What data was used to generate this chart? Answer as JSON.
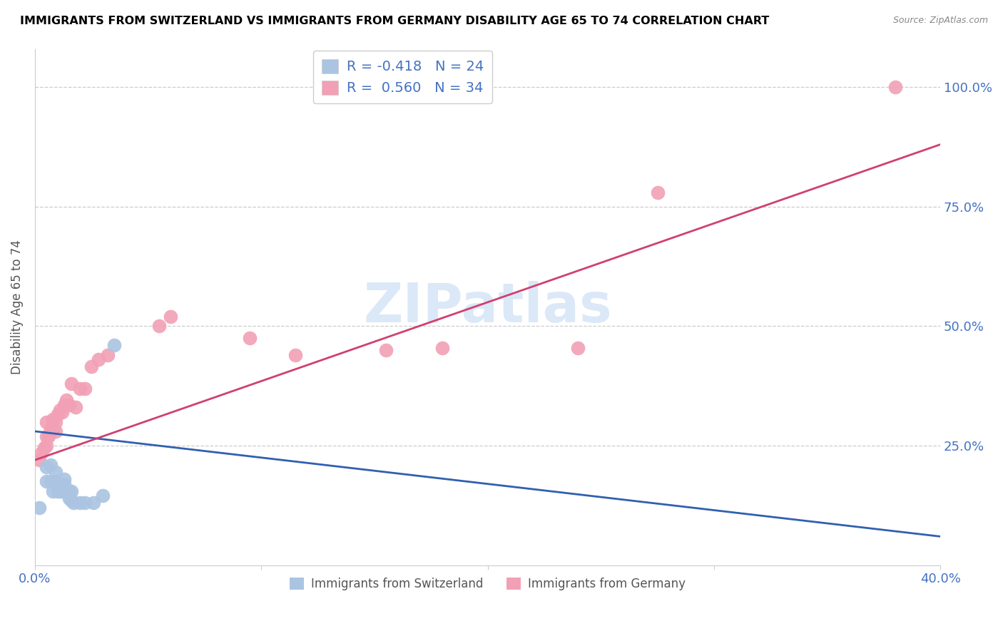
{
  "title": "IMMIGRANTS FROM SWITZERLAND VS IMMIGRANTS FROM GERMANY DISABILITY AGE 65 TO 74 CORRELATION CHART",
  "source": "Source: ZipAtlas.com",
  "ylabel": "Disability Age 65 to 74",
  "ytick_labels": [
    "25.0%",
    "50.0%",
    "75.0%",
    "100.0%"
  ],
  "ytick_values": [
    0.25,
    0.5,
    0.75,
    1.0
  ],
  "xlim": [
    0.0,
    0.4
  ],
  "ylim": [
    0.0,
    1.08
  ],
  "legend_switzerland": "R = -0.418   N = 24",
  "legend_germany": "R =  0.560   N = 34",
  "legend_label_switzerland": "Immigrants from Switzerland",
  "legend_label_germany": "Immigrants from Germany",
  "R_switzerland": -0.418,
  "N_switzerland": 24,
  "R_germany": 0.56,
  "N_germany": 34,
  "switzerland_color": "#aac4e2",
  "germany_color": "#f2a0b5",
  "switzerland_line_color": "#3060b0",
  "germany_line_color": "#d04070",
  "watermark_color": "#ccdff5",
  "switzerland_x": [
    0.002,
    0.005,
    0.005,
    0.007,
    0.007,
    0.008,
    0.009,
    0.009,
    0.01,
    0.011,
    0.011,
    0.012,
    0.013,
    0.013,
    0.015,
    0.015,
    0.016,
    0.016,
    0.017,
    0.02,
    0.022,
    0.026,
    0.03,
    0.035
  ],
  "switzerland_y": [
    0.12,
    0.205,
    0.175,
    0.21,
    0.175,
    0.155,
    0.175,
    0.195,
    0.155,
    0.155,
    0.165,
    0.155,
    0.17,
    0.18,
    0.155,
    0.14,
    0.155,
    0.135,
    0.13,
    0.13,
    0.13,
    0.13,
    0.145,
    0.46
  ],
  "germany_x": [
    0.002,
    0.003,
    0.004,
    0.005,
    0.005,
    0.005,
    0.006,
    0.007,
    0.008,
    0.008,
    0.009,
    0.009,
    0.01,
    0.011,
    0.012,
    0.013,
    0.014,
    0.015,
    0.016,
    0.018,
    0.02,
    0.022,
    0.025,
    0.028,
    0.032,
    0.055,
    0.06,
    0.095,
    0.115,
    0.155,
    0.18,
    0.24,
    0.275,
    0.38
  ],
  "germany_y": [
    0.22,
    0.235,
    0.245,
    0.25,
    0.27,
    0.3,
    0.27,
    0.285,
    0.285,
    0.305,
    0.28,
    0.3,
    0.315,
    0.325,
    0.32,
    0.335,
    0.345,
    0.335,
    0.38,
    0.33,
    0.37,
    0.37,
    0.415,
    0.43,
    0.44,
    0.5,
    0.52,
    0.475,
    0.44,
    0.45,
    0.455,
    0.455,
    0.78,
    1.0
  ],
  "sw_line_x": [
    0.0,
    0.4
  ],
  "sw_line_y": [
    0.28,
    0.06
  ],
  "ge_line_x": [
    0.0,
    0.4
  ],
  "ge_line_y": [
    0.22,
    0.88
  ]
}
